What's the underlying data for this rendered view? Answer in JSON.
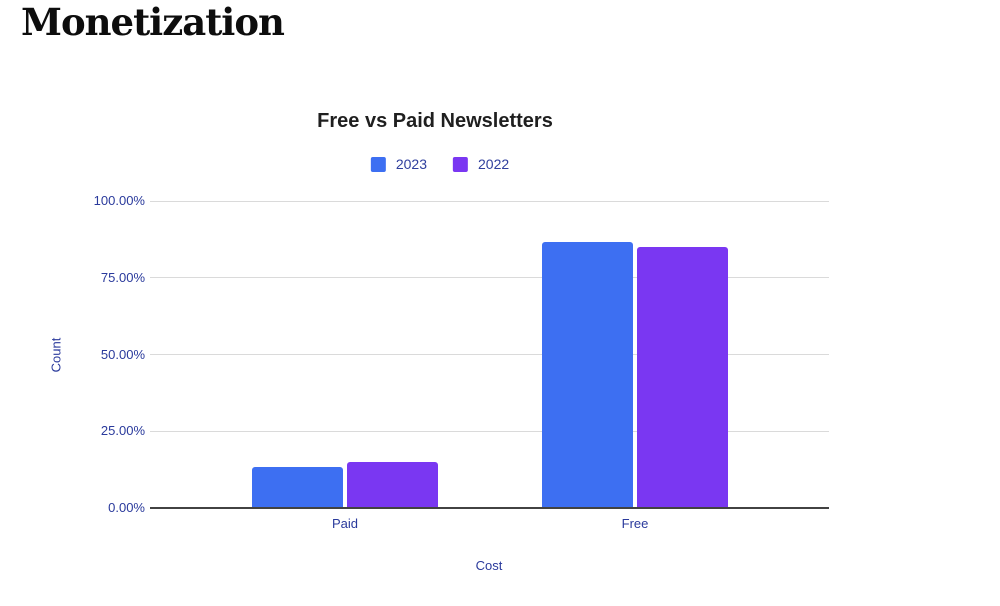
{
  "page": {
    "heading": "Monetization"
  },
  "chart_data": {
    "type": "bar",
    "title": "Free vs Paid Newsletters",
    "categories": [
      "Paid",
      "Free"
    ],
    "series": [
      {
        "name": "2023",
        "color": "#3d6ff2",
        "values": [
          13.4,
          86.6
        ]
      },
      {
        "name": "2022",
        "color": "#7a37f2",
        "values": [
          14.9,
          85.1
        ]
      }
    ],
    "xlabel": "Cost",
    "ylabel": "Count",
    "ylim": [
      0,
      100
    ],
    "yticks": [
      {
        "value": 0,
        "label": "0.00%"
      },
      {
        "value": 25,
        "label": "25.00%"
      },
      {
        "value": 50,
        "label": "50.00%"
      },
      {
        "value": 75,
        "label": "75.00%"
      },
      {
        "value": 100,
        "label": "100.00%"
      }
    ],
    "legend_position": "top",
    "grid": true
  },
  "colors": {
    "axis_text": "#2a3a9c",
    "legend_text": "#2f3f9d",
    "title_text": "#1f1f1f",
    "gridline": "#dadada",
    "axis_line": "#424242",
    "heading_text": "#0d0d0d",
    "background": "#ffffff"
  }
}
